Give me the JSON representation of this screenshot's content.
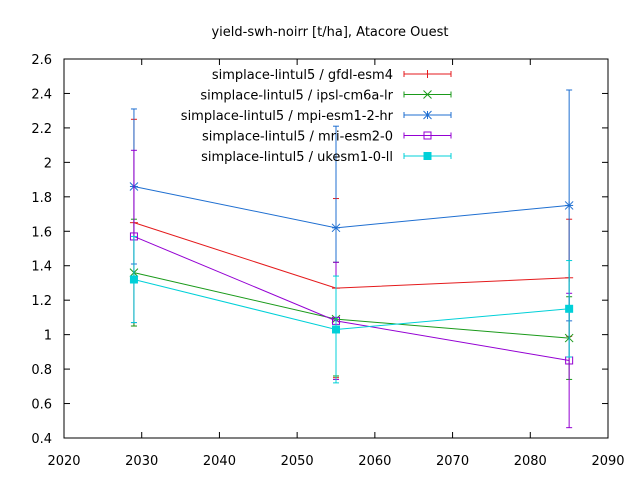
{
  "chart_data": {
    "type": "line",
    "title": "yield-swh-noirr [t/ha], Atacore Ouest",
    "xlabel": "",
    "ylabel": "",
    "xlim": [
      2020,
      2090
    ],
    "ylim": [
      0.4,
      2.6
    ],
    "xticks": [
      2020,
      2030,
      2040,
      2050,
      2060,
      2070,
      2080,
      2090
    ],
    "yticks": [
      0.4,
      0.6,
      0.8,
      1,
      1.2,
      1.4,
      1.6,
      1.8,
      2,
      2.2,
      2.4,
      2.6
    ],
    "grid": false,
    "legend_position": "top-right",
    "error_bars": true,
    "series": [
      {
        "name": "simplace-lintul5 / gfdl-esm4",
        "color": "#e41a1c",
        "marker": "plus",
        "x": [
          2029,
          2055,
          2085
        ],
        "y": [
          1.65,
          1.27,
          1.33
        ],
        "err_low": [
          1.05,
          0.75,
          0.99
        ],
        "err_high": [
          2.25,
          1.79,
          1.67
        ]
      },
      {
        "name": "simplace-lintul5 / ipsl-cm6a-lr",
        "color": "#1a9a1a",
        "marker": "cross",
        "x": [
          2029,
          2055,
          2085
        ],
        "y": [
          1.36,
          1.09,
          0.98
        ],
        "err_low": [
          1.05,
          0.76,
          0.74
        ],
        "err_high": [
          1.67,
          1.42,
          1.22
        ]
      },
      {
        "name": "simplace-lintul5 / mpi-esm1-2-hr",
        "color": "#1f6fd1",
        "marker": "star",
        "x": [
          2029,
          2055,
          2085
        ],
        "y": [
          1.86,
          1.62,
          1.75
        ],
        "err_low": [
          1.41,
          1.03,
          1.08
        ],
        "err_high": [
          2.31,
          2.21,
          2.42
        ]
      },
      {
        "name": "simplace-lintul5 / mri-esm2-0",
        "color": "#9400d3",
        "marker": "square-open",
        "x": [
          2029,
          2055,
          2085
        ],
        "y": [
          1.57,
          1.08,
          0.85
        ],
        "err_low": [
          1.07,
          0.74,
          0.46
        ],
        "err_high": [
          2.07,
          1.42,
          1.24
        ]
      },
      {
        "name": "simplace-lintul5 / ukesm1-0-ll",
        "color": "#00d0d8",
        "marker": "square-filled",
        "x": [
          2029,
          2055,
          2085
        ],
        "y": [
          1.32,
          1.03,
          1.15
        ],
        "err_low": [
          1.07,
          0.72,
          0.87
        ],
        "err_high": [
          1.57,
          1.34,
          1.43
        ]
      }
    ]
  }
}
